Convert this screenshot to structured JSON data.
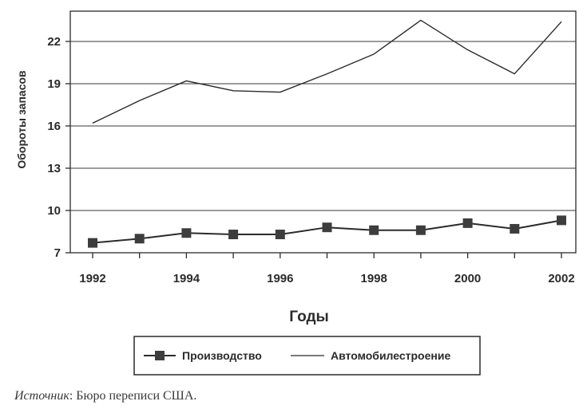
{
  "chart_data": {
    "type": "line",
    "xlabel": "Годы",
    "ylabel": "Обороты запасов",
    "x": [
      1992,
      1993,
      1994,
      1995,
      1996,
      1997,
      1998,
      1999,
      2000,
      2001,
      2002
    ],
    "xticks": [
      "1992",
      "1994",
      "1996",
      "1998",
      "2000",
      "2002"
    ],
    "yticks": [
      "7",
      "10",
      "13",
      "16",
      "19",
      "22"
    ],
    "ylim": [
      7,
      24.5
    ],
    "grid": true,
    "legend_placement": "bottom",
    "series": [
      {
        "name": "Производство",
        "marker": "square",
        "values": [
          7.7,
          8.0,
          8.4,
          8.3,
          8.3,
          8.8,
          8.6,
          8.6,
          9.1,
          8.7,
          9.3
        ]
      },
      {
        "name": "Автомобилестроение",
        "marker": "none",
        "values": [
          16.2,
          17.8,
          19.2,
          18.5,
          18.4,
          19.7,
          21.1,
          23.5,
          21.4,
          19.7,
          23.4
        ]
      }
    ]
  },
  "source": {
    "label": "Источник",
    "text": ": Бюро переписи США."
  },
  "colors": {
    "line": "#2b2b2b",
    "grid": "#3a3a3a",
    "frame": "#2b2b2b"
  }
}
